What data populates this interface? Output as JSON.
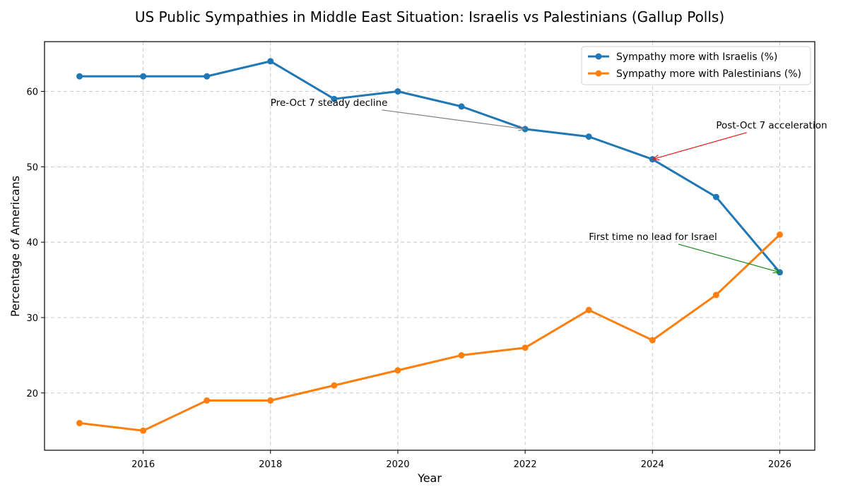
{
  "chart_data": {
    "type": "line",
    "title": "US Public Sympathies in Middle East Situation: Israelis vs Palestinians (Gallup Polls)",
    "xlabel": "Year",
    "ylabel": "Percentage of Americans",
    "x": [
      2015,
      2016,
      2017,
      2018,
      2019,
      2020,
      2021,
      2022,
      2023,
      2024,
      2025,
      2026
    ],
    "xlim": [
      2014.45,
      2026.55
    ],
    "ylim": [
      12.4,
      66.6
    ],
    "x_ticks": [
      2016,
      2018,
      2020,
      2022,
      2024,
      2026
    ],
    "y_ticks": [
      20,
      30,
      40,
      50,
      60
    ],
    "grid": true,
    "legend_position": "top-right",
    "series": [
      {
        "name": "Sympathy more with Israelis (%)",
        "color": "#1f77b4",
        "values": [
          62,
          62,
          62,
          64,
          59,
          60,
          58,
          55,
          54,
          51,
          46,
          36
        ]
      },
      {
        "name": "Sympathy more with Palestinians (%)",
        "color": "#ff7f0e",
        "values": [
          16,
          15,
          19,
          19,
          21,
          23,
          25,
          26,
          31,
          27,
          33,
          41
        ]
      }
    ],
    "annotations": [
      {
        "text": "Pre-Oct 7 steady decline",
        "target_x": 2022,
        "target_y": 55,
        "text_x": 2018,
        "text_y": 58.1,
        "color": "#808080"
      },
      {
        "text": "Post-Oct 7 acceleration",
        "target_x": 2024,
        "target_y": 51,
        "text_x": 2025,
        "text_y": 55.1,
        "color": "#e31a1c"
      },
      {
        "text": "First time no lead for Israel",
        "target_x": 2026,
        "target_y": 36,
        "text_x": 2023,
        "text_y": 40.3,
        "color": "#1a8a1a"
      }
    ]
  }
}
